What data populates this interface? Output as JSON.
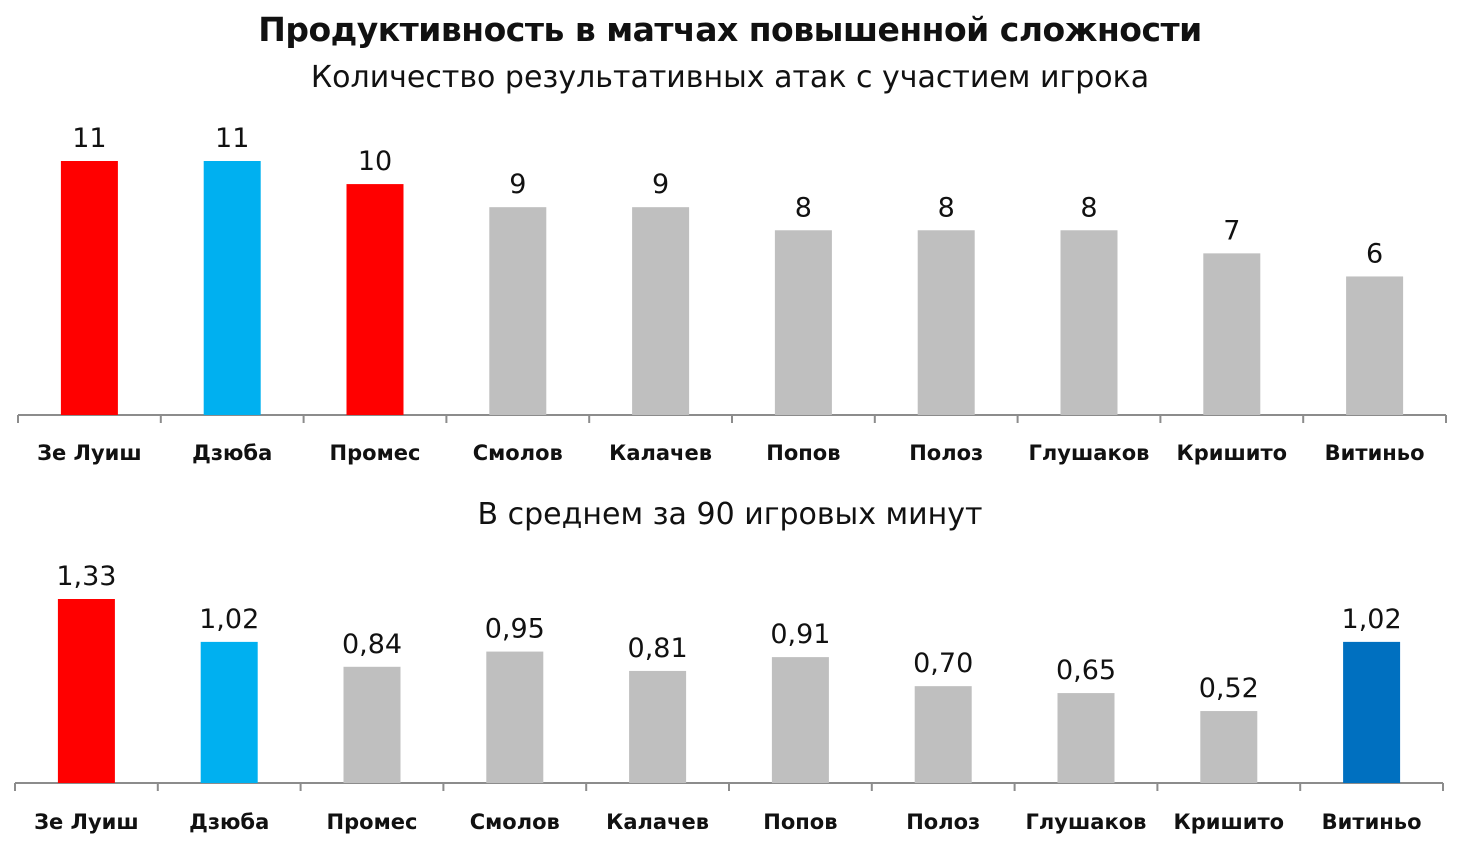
{
  "title": "Продуктивность в матчах повышенной сложности",
  "chart_data": [
    {
      "type": "bar",
      "subtitle": "Количество результативных атак с участием игрока",
      "categories": [
        "Зе Луиш",
        "Дзюба",
        "Промес",
        "Смолов",
        "Калачев",
        "Попов",
        "Полоз",
        "Глушаков",
        "Кришито",
        "Витиньо"
      ],
      "values": [
        11,
        11,
        10,
        9,
        9,
        8,
        8,
        8,
        7,
        6
      ],
      "labels": [
        "11",
        "11",
        "10",
        "9",
        "9",
        "8",
        "8",
        "8",
        "7",
        "6"
      ],
      "colors": [
        "#ff0000",
        "#00b0f0",
        "#ff0000",
        "#bfbfbf",
        "#bfbfbf",
        "#bfbfbf",
        "#bfbfbf",
        "#bfbfbf",
        "#bfbfbf",
        "#bfbfbf"
      ],
      "ylim": [
        0,
        11
      ]
    },
    {
      "type": "bar",
      "subtitle": "В среднем за 90 игровых минут",
      "categories": [
        "Зе Луиш",
        "Дзюба",
        "Промес",
        "Смолов",
        "Калачев",
        "Попов",
        "Полоз",
        "Глушаков",
        "Кришито",
        "Витиньо"
      ],
      "values": [
        1.33,
        1.02,
        0.84,
        0.95,
        0.81,
        0.91,
        0.7,
        0.65,
        0.52,
        1.02
      ],
      "labels": [
        "1,33",
        "1,02",
        "0,84",
        "0,95",
        "0,81",
        "0,91",
        "0,70",
        "0,65",
        "0,52",
        "1,02"
      ],
      "colors": [
        "#ff0000",
        "#00b0f0",
        "#bfbfbf",
        "#bfbfbf",
        "#bfbfbf",
        "#bfbfbf",
        "#bfbfbf",
        "#bfbfbf",
        "#bfbfbf",
        "#0070c0"
      ],
      "ylim": [
        0,
        1.33
      ]
    }
  ]
}
